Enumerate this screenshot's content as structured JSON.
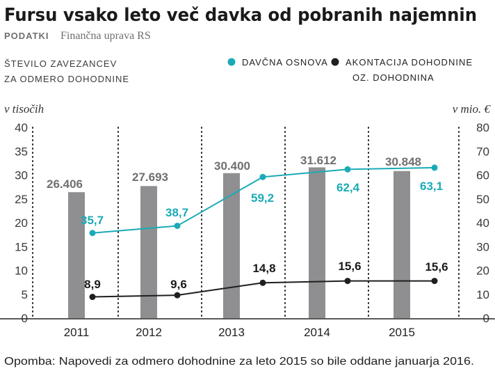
{
  "chart_data": {
    "type": "bar",
    "title": "Fursu vsako leto več davka od pobranih najemnin",
    "source_label": "PODATKI",
    "source": "Finančna uprava RS",
    "left_axis_title": [
      "ŠTEVILO ZAVEZANCEV",
      "ZA ODMERO DOHODNINE"
    ],
    "left_unit": "v tisočih",
    "right_unit": "v mio. €",
    "categories": [
      "2011",
      "2012",
      "2013",
      "2014",
      "2015"
    ],
    "bar_series": {
      "name": "Število zavezancev za odmero dohodnine",
      "values": [
        26.406,
        27.693,
        30.4,
        31.612,
        30.848
      ],
      "labels": [
        "26.406",
        "27.693",
        "30.400",
        "31.612",
        "30.848"
      ],
      "color": "#8f8f91"
    },
    "line_series": [
      {
        "name": "DAVČNA OSNOVA",
        "values": [
          35.7,
          38.7,
          59.2,
          62.4,
          63.1
        ],
        "labels": [
          "35,7",
          "38,7",
          "59,2",
          "62,4",
          "63,1"
        ],
        "color": "#1aaab7"
      },
      {
        "name": "AKONTACIJA DOHODNINE OZ. DOHODNINA",
        "values": [
          8.9,
          9.6,
          14.8,
          15.6,
          15.6
        ],
        "labels": [
          "8,9",
          "9,6",
          "14,8",
          "15,6",
          "15,6"
        ],
        "color": "#1f1f1f"
      }
    ],
    "legend_lines": [
      [
        "DAVČNA OSNOVA"
      ],
      [
        "AKONTACIJA DOHODNINE",
        "OZ. DOHODNINA"
      ]
    ],
    "left_ylim": [
      0,
      40
    ],
    "right_ylim": [
      0,
      80
    ],
    "left_ticks": [
      40,
      35,
      30,
      25,
      20,
      15,
      10,
      5,
      0
    ],
    "right_ticks": [
      80,
      70,
      60,
      50,
      40,
      30,
      20,
      10,
      0
    ],
    "footnote": "Opomba: Napovedi za odmero dohodnine za leto 2015 so bile oddane januarja 2016."
  }
}
